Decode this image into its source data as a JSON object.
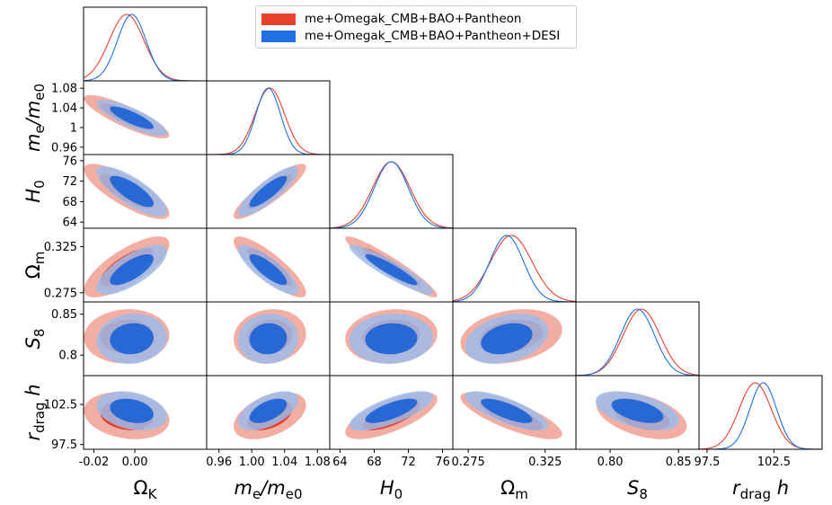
{
  "chart_data": {
    "type": "triangle",
    "legend": [
      {
        "label": "me+Omegak_CMB+BAO+Pantheon",
        "color": "#e8412b"
      },
      {
        "label": "me+Omegak_CMB+BAO+Pantheon+DESI",
        "color": "#1f6fe6"
      }
    ],
    "parameters": [
      {
        "key": "omk",
        "axis_label": "Ω_K",
        "range": [
          -0.025,
          0.035
        ],
        "ticks": [
          "-0.02",
          "0.00"
        ],
        "tick_values": [
          -0.02,
          0.0
        ]
      },
      {
        "key": "me",
        "axis_label": "m_e/m_e0",
        "range": [
          0.945,
          1.095
        ],
        "ticks": [
          "0.96",
          "1",
          "1.04",
          "1.08"
        ],
        "xticks": [
          "0.96",
          "1.00",
          "1.04",
          "1.08"
        ],
        "tick_values": [
          0.96,
          1.0,
          1.04,
          1.08
        ]
      },
      {
        "key": "H0",
        "axis_label": "H_0",
        "range": [
          62.8,
          77.2
        ],
        "ticks": [
          "64",
          "68",
          "72",
          "76"
        ],
        "tick_values": [
          64,
          68,
          72,
          76
        ]
      },
      {
        "key": "om",
        "axis_label": "Ω_m",
        "range": [
          0.265,
          0.345
        ],
        "ticks": [
          "0.275",
          "0.325"
        ],
        "tick_values": [
          0.275,
          0.325
        ]
      },
      {
        "key": "S8",
        "axis_label": "S_8",
        "range": [
          0.775,
          0.865
        ],
        "ticks": [
          "0.8",
          "0.85"
        ],
        "xticks": [
          "0.80",
          "0.85"
        ],
        "tick_values": [
          0.8,
          0.85
        ]
      },
      {
        "key": "rdh",
        "axis_label": "r_drag h",
        "range": [
          96.9,
          106.1
        ],
        "ticks": [
          "97.5",
          "102.5"
        ],
        "tick_values": [
          97.5,
          102.5
        ]
      }
    ],
    "series": [
      {
        "name": "me+Omegak_CMB+BAO+Pantheon",
        "color": "#e8412b",
        "mean": [
          -0.004,
          1.022,
          70.0,
          0.303,
          0.823,
          101.1
        ],
        "sigma": [
          0.0085,
          0.018,
          2.2,
          0.0135,
          0.0135,
          1.2
        ]
      },
      {
        "name": "me+Omegak_CMB+BAO+Pantheon+DESI",
        "color": "#1f6fe6",
        "mean": [
          -0.0015,
          1.02,
          70.0,
          0.3,
          0.82,
          101.7
        ],
        "sigma": [
          0.007,
          0.015,
          2.0,
          0.011,
          0.0125,
          1.0
        ]
      }
    ],
    "correlations": {
      "red": {
        "omk-me": -0.85,
        "omk-H0": -0.8,
        "omk-om": 0.75,
        "omk-S8": 0.05,
        "omk-rdh": -0.2,
        "me-H0": 0.88,
        "me-om": -0.85,
        "me-S8": 0.1,
        "me-rdh": 0.45,
        "H0-om": -0.94,
        "H0-S8": 0.1,
        "H0-rdh": 0.7,
        "om-S8": 0.25,
        "om-rdh": -0.78,
        "S8-rdh": -0.45
      },
      "blue": {
        "omk-me": -0.82,
        "omk-H0": -0.78,
        "omk-om": 0.72,
        "omk-S8": 0.08,
        "omk-rdh": -0.28,
        "me-H0": 0.85,
        "me-om": -0.82,
        "me-S8": 0.05,
        "me-rdh": 0.55,
        "H0-om": -0.92,
        "H0-S8": 0.05,
        "H0-rdh": 0.72,
        "om-S8": 0.3,
        "om-rdh": -0.75,
        "S8-rdh": -0.5
      }
    }
  }
}
